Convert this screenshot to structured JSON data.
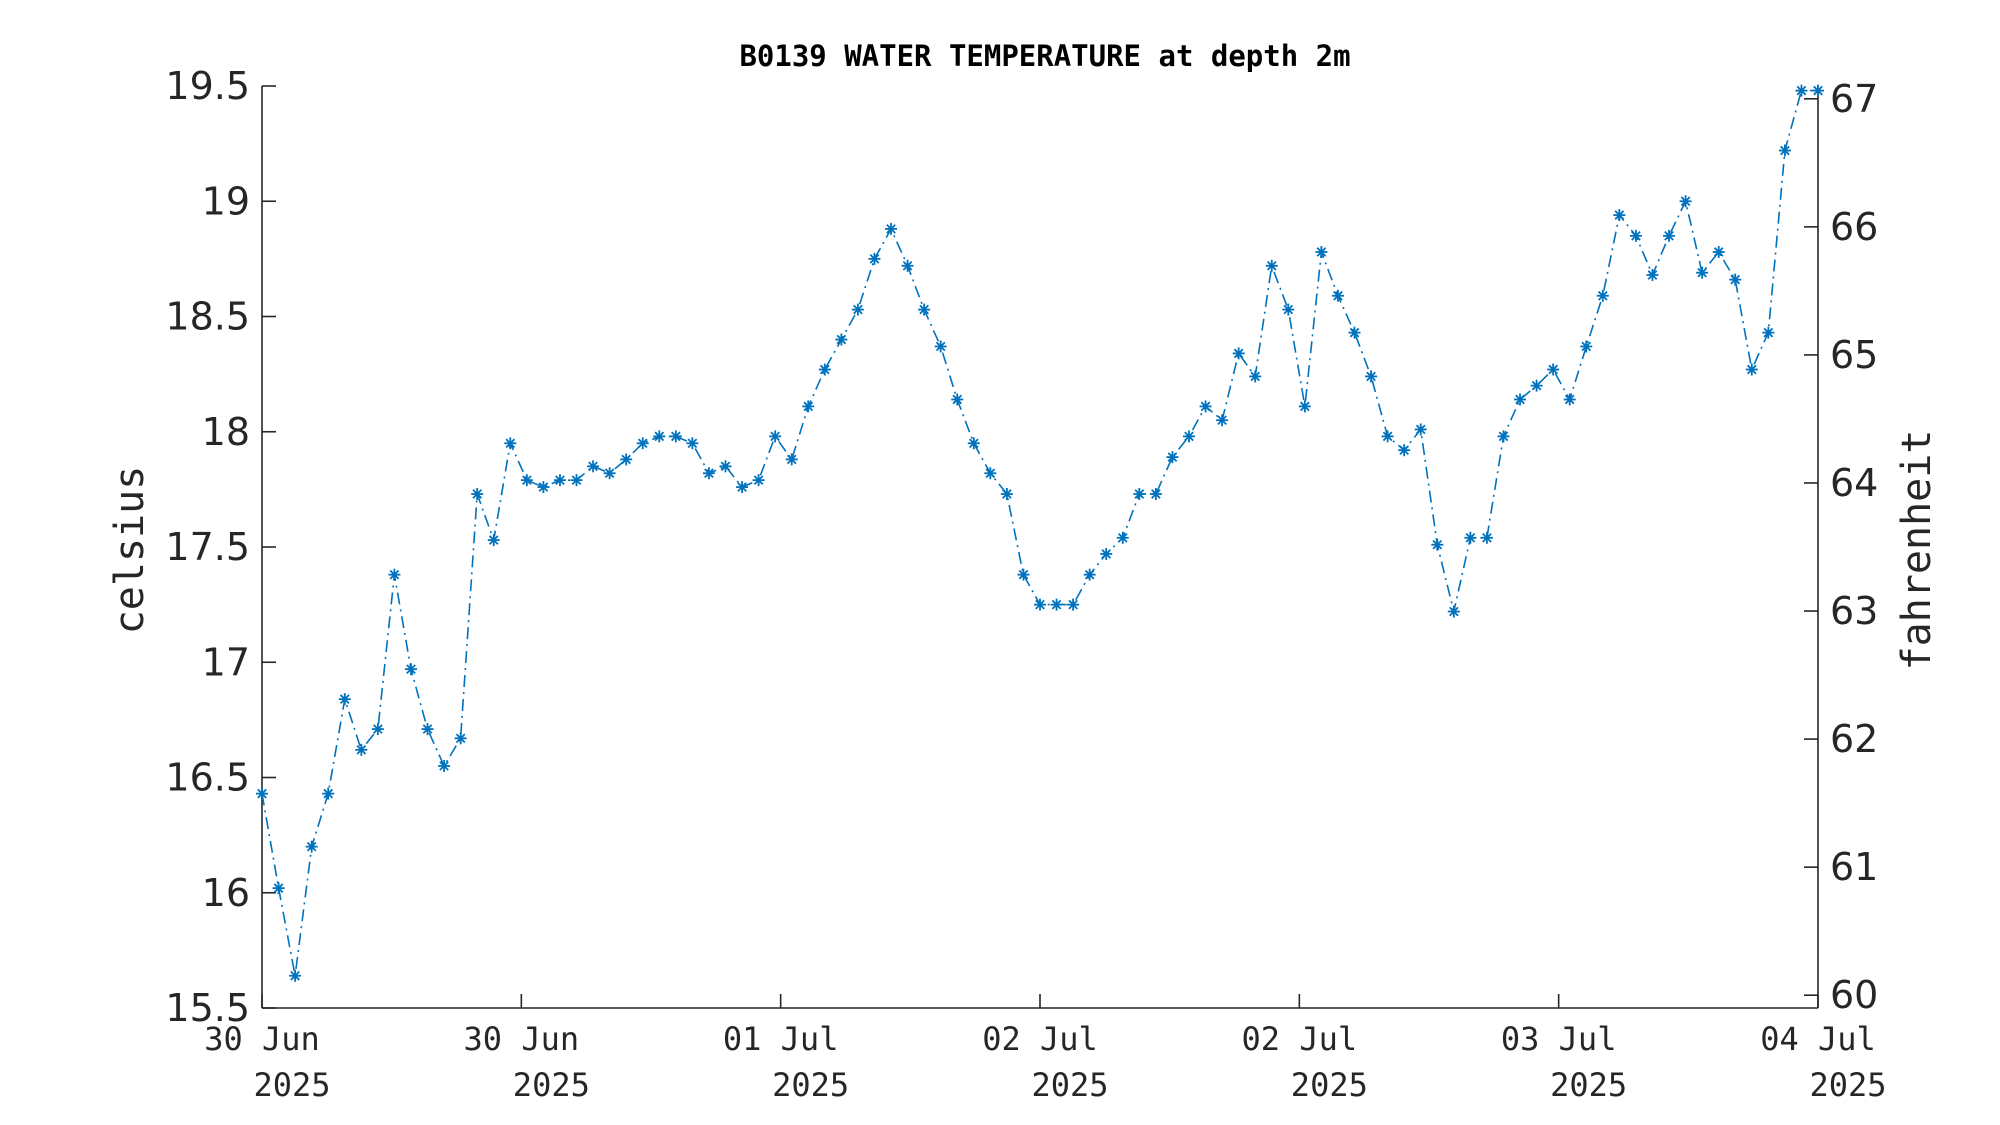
{
  "chart_data": {
    "type": "line",
    "title": "B0139 WATER TEMPERATURE at depth 2m",
    "ylabel": "celsius",
    "y2label": "fahrenheit",
    "ylim": [
      15.5,
      19.5
    ],
    "y2lim": [
      59.9,
      67.1
    ],
    "yticks": [
      "15.5",
      "16",
      "16.5",
      "17",
      "17.5",
      "18",
      "18.5",
      "19",
      "19.5"
    ],
    "y2ticks": [
      "60",
      "61",
      "62",
      "63",
      "64",
      "65",
      "66",
      "67"
    ],
    "xticks": [
      {
        "day": "30 Jun",
        "year": "2025"
      },
      {
        "day": "30 Jun",
        "year": "2025"
      },
      {
        "day": "01 Jul",
        "year": "2025"
      },
      {
        "day": "02 Jul",
        "year": "2025"
      },
      {
        "day": "02 Jul",
        "year": "2025"
      },
      {
        "day": "03 Jul",
        "year": "2025"
      },
      {
        "day": "04 Jul",
        "year": "2025"
      }
    ],
    "values": [
      16.43,
      16.02,
      15.64,
      16.2,
      16.43,
      16.84,
      16.62,
      16.71,
      17.38,
      16.97,
      16.71,
      16.55,
      16.67,
      17.73,
      17.53,
      17.95,
      17.79,
      17.76,
      17.79,
      17.79,
      17.85,
      17.82,
      17.88,
      17.95,
      17.98,
      17.98,
      17.95,
      17.82,
      17.85,
      17.76,
      17.79,
      17.98,
      17.88,
      18.11,
      18.27,
      18.4,
      18.53,
      18.75,
      18.88,
      18.72,
      18.53,
      18.37,
      18.14,
      17.95,
      17.82,
      17.73,
      17.38,
      17.25,
      17.25,
      17.25,
      17.38,
      17.47,
      17.54,
      17.73,
      17.73,
      17.89,
      17.98,
      18.11,
      18.05,
      18.34,
      18.24,
      18.72,
      18.53,
      18.11,
      18.78,
      18.59,
      18.43,
      18.24,
      17.98,
      17.92,
      18.01,
      17.51,
      17.22,
      17.54,
      17.54,
      17.98,
      18.14,
      18.2,
      18.27,
      18.14,
      18.37,
      18.59,
      18.94,
      18.85,
      18.68,
      18.85,
      19.0,
      18.69,
      18.78,
      18.66,
      18.27,
      18.43,
      19.22,
      19.48,
      19.48
    ]
  }
}
